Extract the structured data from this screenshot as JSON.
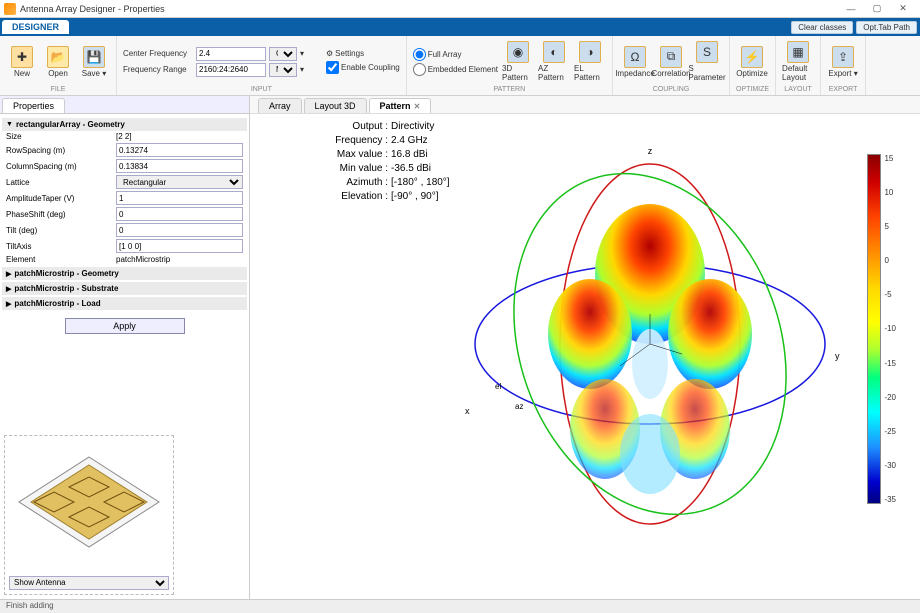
{
  "window": {
    "title": "Antenna Array Designer - Properties"
  },
  "menubar": {
    "tab": "DESIGNER",
    "right_buttons": [
      "Clear classes",
      "Opt.Tab Path"
    ]
  },
  "ribbon": {
    "file": {
      "new": "New",
      "open": "Open",
      "save": "Save",
      "label": "FILE"
    },
    "input": {
      "cf_label": "Center Frequency",
      "cf_value": "2.4",
      "cf_unit": "GHz",
      "fr_label": "Frequency Range",
      "fr_value": "2160:24:2640",
      "fr_unit": "MHz",
      "settings": "Settings",
      "enable_coupling": "Enable Coupling",
      "label": "INPUT"
    },
    "pattern": {
      "full_array": "Full Array",
      "embedded": "Embedded Element",
      "btns": [
        "3D Pattern",
        "AZ Pattern",
        "EL Pattern"
      ],
      "label": "PATTERN"
    },
    "coupling": {
      "btns": [
        "Impedance",
        "Correlation",
        "S Parameter"
      ],
      "label": "COUPLING"
    },
    "optimize": {
      "btn": "Optimize",
      "label": "OPTIMIZE"
    },
    "layout": {
      "btn": "Default Layout",
      "label": "LAYOUT"
    },
    "export": {
      "btn": "Export",
      "label": "EXPORT"
    }
  },
  "properties": {
    "tab": "Properties",
    "sections": {
      "main": {
        "title": "rectangularArray - Geometry",
        "rows": [
          {
            "label": "Size",
            "value": "[2 2]",
            "plain": true
          },
          {
            "label": "RowSpacing (m)",
            "value": "0.13274"
          },
          {
            "label": "ColumnSpacing (m)",
            "value": "0.13834"
          },
          {
            "label": "Lattice",
            "value": "Rectangular",
            "select": true
          },
          {
            "label": "AmplitudeTaper (V)",
            "value": "1"
          },
          {
            "label": "PhaseShift (deg)",
            "value": "0"
          },
          {
            "label": "Tilt (deg)",
            "value": "0"
          },
          {
            "label": "TiltAxis",
            "value": "[1 0 0]"
          },
          {
            "label": "Element",
            "value": "patchMicrostrip",
            "plain": true
          }
        ]
      },
      "collapsed": [
        "patchMicrostrip - Geometry",
        "patchMicrostrip - Substrate",
        "patchMicrostrip - Load"
      ]
    },
    "apply": "Apply"
  },
  "viewer": {
    "tabs": [
      {
        "label": "Array",
        "active": false
      },
      {
        "label": "Layout 3D",
        "active": false
      },
      {
        "label": "Pattern",
        "active": true,
        "closable": true
      }
    ],
    "info": [
      {
        "k": "Output",
        "v": "Directivity"
      },
      {
        "k": "Frequency",
        "v": "2.4 GHz"
      },
      {
        "k": "Max value",
        "v": "16.8 dBi"
      },
      {
        "k": "Min value",
        "v": "-36.5 dBi"
      },
      {
        "k": "Azimuth",
        "v": "[-180° , 180°]"
      },
      {
        "k": "Elevation",
        "v": "[-90° , 90°]"
      }
    ],
    "axes": {
      "x": "x",
      "y": "y",
      "z": "z",
      "el": "el",
      "az": "az"
    },
    "colorbar_ticks": [
      "15",
      "10",
      "5",
      "0",
      "-5",
      "-10",
      "-15",
      "-20",
      "-25",
      "-30",
      "-35"
    ],
    "preview_select": "Show Antenna"
  },
  "status": "Finish adding",
  "style": {
    "ring_red": "#d01818",
    "ring_green": "#18c018",
    "ring_blue": "#1818e0",
    "patch_board": "#e0c060"
  }
}
